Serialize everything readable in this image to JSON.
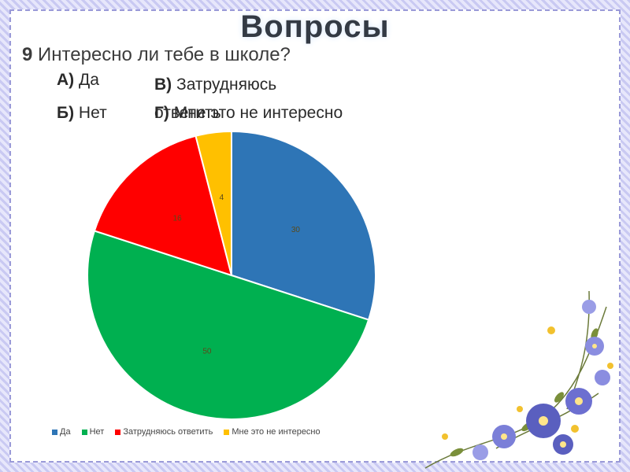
{
  "slide": {
    "title": "Вопросы",
    "question_number": "9",
    "question_text": " Интересно ли тебе в школе?",
    "options": {
      "a_letter": "А)",
      "a_text": " Да",
      "b_letter": "Б)",
      "b_text": " Нет",
      "v_letter": "В)",
      "v_text": " Затрудняюсь ответить",
      "g_letter": "Г)",
      "g_text": " Мне это не интересно"
    }
  },
  "chart_data": {
    "type": "pie",
    "categories": [
      "Да",
      "Нет",
      "Затрудняюсь ответить",
      "Мне это не интересно"
    ],
    "values": [
      30,
      50,
      16,
      4
    ],
    "colors": [
      "#2e75b6",
      "#00b050",
      "#ff0000",
      "#ffc000"
    ],
    "data_labels": [
      "30",
      "50",
      "16",
      "4"
    ],
    "legend_position": "bottom"
  }
}
